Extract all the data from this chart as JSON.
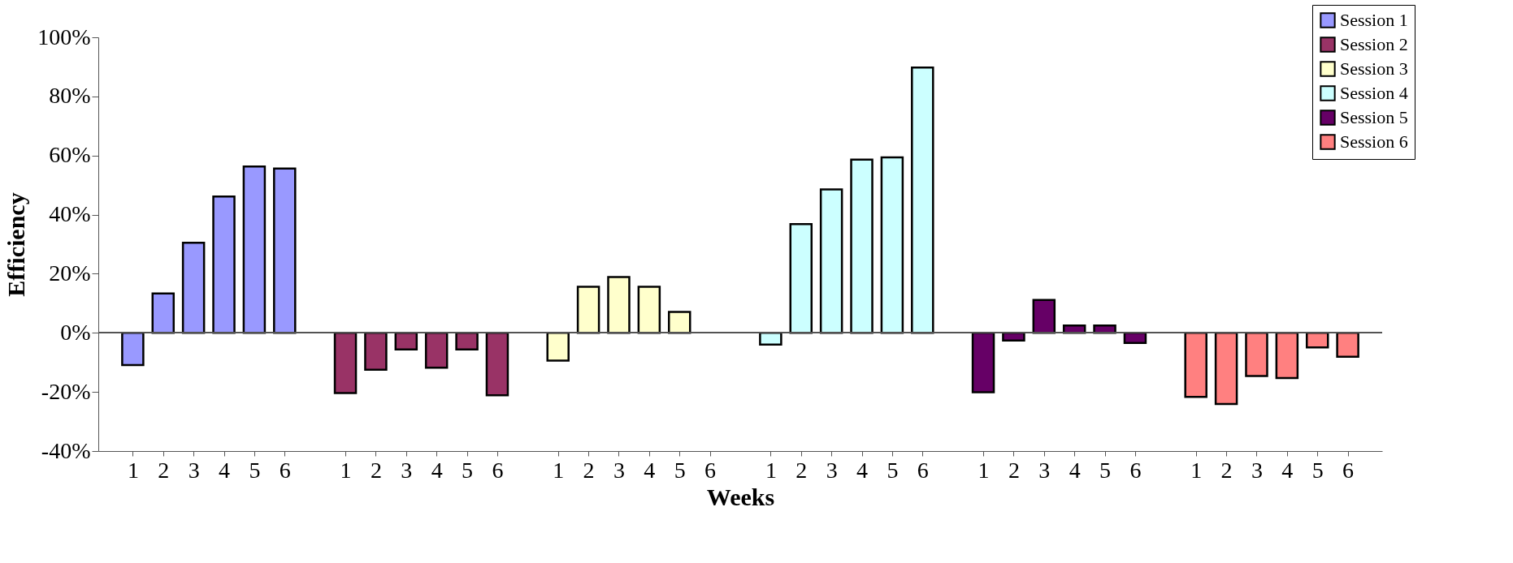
{
  "chart_data": {
    "type": "bar",
    "xlabel": "Weeks",
    "ylabel": "Efficiency",
    "categories": [
      "1",
      "2",
      "3",
      "4",
      "5",
      "6",
      null,
      "1",
      "2",
      "3",
      "4",
      "5",
      "6",
      null,
      "1",
      "2",
      "3",
      "4",
      "5",
      "6",
      null,
      "1",
      "2",
      "3",
      "4",
      "5",
      "6",
      null,
      "1",
      "2",
      "3",
      "4",
      "5",
      "6",
      null,
      "1",
      "2",
      "3",
      "4",
      "5",
      "6"
    ],
    "series": [
      {
        "name": "Session 1",
        "color": "#9999ff",
        "values": [
          -10.9,
          13.3,
          30.5,
          46.1,
          56.3,
          55.6,
          null,
          null,
          null,
          null,
          null,
          null,
          null,
          null,
          null,
          null,
          null,
          null,
          null,
          null,
          null,
          null,
          null,
          null,
          null,
          null,
          null,
          null,
          null,
          null,
          null,
          null,
          null,
          null,
          null,
          null,
          null,
          null,
          null,
          null,
          null
        ]
      },
      {
        "name": "Session 2",
        "color": "#993366",
        "values": [
          null,
          null,
          null,
          null,
          null,
          null,
          null,
          -20.4,
          -12.5,
          -5.6,
          -11.8,
          -5.6,
          -21.1,
          null,
          null,
          null,
          null,
          null,
          null,
          null,
          null,
          null,
          null,
          null,
          null,
          null,
          null,
          null,
          null,
          null,
          null,
          null,
          null,
          null,
          null,
          null,
          null,
          null,
          null,
          null,
          null
        ]
      },
      {
        "name": "Session 3",
        "color": "#ffffcc",
        "values": [
          null,
          null,
          null,
          null,
          null,
          null,
          null,
          null,
          null,
          null,
          null,
          null,
          null,
          null,
          -9.4,
          15.6,
          18.9,
          15.6,
          7.1,
          null,
          null,
          null,
          null,
          null,
          null,
          null,
          null,
          null,
          null,
          null,
          null,
          null,
          null,
          null,
          null,
          null,
          null,
          null,
          null,
          null,
          null
        ]
      },
      {
        "name": "Session 4",
        "color": "#ccffff",
        "values": [
          null,
          null,
          null,
          null,
          null,
          null,
          null,
          null,
          null,
          null,
          null,
          null,
          null,
          null,
          null,
          null,
          null,
          null,
          null,
          null,
          null,
          -4.0,
          36.8,
          48.5,
          58.6,
          59.4,
          89.8,
          null,
          null,
          null,
          null,
          null,
          null,
          null,
          null,
          null,
          null,
          null,
          null,
          null,
          null
        ]
      },
      {
        "name": "Session 5",
        "color": "#660066",
        "values": [
          null,
          null,
          null,
          null,
          null,
          null,
          null,
          null,
          null,
          null,
          null,
          null,
          null,
          null,
          null,
          null,
          null,
          null,
          null,
          null,
          null,
          null,
          null,
          null,
          null,
          null,
          null,
          null,
          -20.1,
          -2.6,
          11.1,
          2.5,
          2.5,
          -3.4,
          null,
          null,
          null,
          null,
          null,
          null,
          null
        ]
      },
      {
        "name": "Session 6",
        "color": "#ff8080",
        "values": [
          null,
          null,
          null,
          null,
          null,
          null,
          null,
          null,
          null,
          null,
          null,
          null,
          null,
          null,
          null,
          null,
          null,
          null,
          null,
          null,
          null,
          null,
          null,
          null,
          null,
          null,
          null,
          null,
          null,
          null,
          null,
          null,
          null,
          null,
          null,
          -21.7,
          -24.1,
          -14.6,
          -15.3,
          -4.9,
          -8.1
        ]
      }
    ],
    "ylim": [
      -40,
      100
    ],
    "yticks": [
      {
        "value": -40,
        "label": "-40%"
      },
      {
        "value": -20,
        "label": "-20%"
      },
      {
        "value": 0,
        "label": "0%"
      },
      {
        "value": 20,
        "label": "20%"
      },
      {
        "value": 40,
        "label": "40%"
      },
      {
        "value": 60,
        "label": "60%"
      },
      {
        "value": 80,
        "label": "80%"
      },
      {
        "value": 100,
        "label": "100%"
      }
    ],
    "legend": "top right"
  }
}
